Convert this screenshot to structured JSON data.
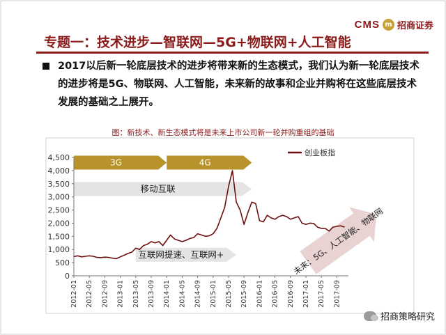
{
  "logo": {
    "cms": "CMS",
    "badge": "m",
    "name": "招商证券"
  },
  "title": "专题一：技术进步—智联网—5G+物联网+人工智能",
  "body_text": "2017以后新一轮底层技术的进步将带来新的生态模式，我们认为新一轮底层技术的进步将是5G、物联网、人工智能，未来新的故事和企业并购将在这些底层技术发展的基础之上展开。",
  "chart_caption": "图：新技术、新生态模式将是未来上市公司新一轮并购重组的基础",
  "watermark": "招商策略研究",
  "colors": {
    "brand": "#8b1a1a",
    "gold": "#b8922b",
    "series": "#6b0f0f",
    "gray_arrow": "#e4e4e4",
    "pink_arrow": "#e8d2d2"
  },
  "chart_data": {
    "type": "line",
    "legend": "创业板指",
    "legend_position": "top-right",
    "ylim": [
      0,
      4500
    ],
    "yticks": [
      "0",
      "500",
      "1,000",
      "1,500",
      "2,000",
      "2,500",
      "3,000",
      "3,500",
      "4,000",
      "4,500"
    ],
    "ytick_values": [
      0,
      500,
      1000,
      1500,
      2000,
      2500,
      3000,
      3500,
      4000,
      4500
    ],
    "xlim": [
      "2012-01",
      "2017-12"
    ],
    "xticks": [
      "2012-01",
      "2012-05",
      "2012-09",
      "2013-01",
      "2013-05",
      "2013-09",
      "2014-01",
      "2014-05",
      "2014-09",
      "2015-01",
      "2015-05",
      "2015-09",
      "2016-01",
      "2016-05",
      "2016-09",
      "2017-01",
      "2017-05",
      "2017-09"
    ],
    "grid": false,
    "series": [
      {
        "name": "创业板指",
        "points": [
          [
            "2012-01",
            730
          ],
          [
            "2012-02",
            760
          ],
          [
            "2012-03",
            720
          ],
          [
            "2012-04",
            740
          ],
          [
            "2012-05",
            760
          ],
          [
            "2012-06",
            740
          ],
          [
            "2012-07",
            700
          ],
          [
            "2012-08",
            690
          ],
          [
            "2012-09",
            710
          ],
          [
            "2012-10",
            700
          ],
          [
            "2012-11",
            670
          ],
          [
            "2012-12",
            650
          ],
          [
            "2013-01",
            720
          ],
          [
            "2013-02",
            780
          ],
          [
            "2013-03",
            850
          ],
          [
            "2013-04",
            900
          ],
          [
            "2013-05",
            1050
          ],
          [
            "2013-06",
            1000
          ],
          [
            "2013-07",
            1150
          ],
          [
            "2013-08",
            1200
          ],
          [
            "2013-09",
            1300
          ],
          [
            "2013-10",
            1250
          ],
          [
            "2013-11",
            1300
          ],
          [
            "2013-12",
            1150
          ],
          [
            "2014-01",
            1350
          ],
          [
            "2014-02",
            1550
          ],
          [
            "2014-03",
            1400
          ],
          [
            "2014-04",
            1350
          ],
          [
            "2014-05",
            1300
          ],
          [
            "2014-06",
            1350
          ],
          [
            "2014-07",
            1420
          ],
          [
            "2014-08",
            1450
          ],
          [
            "2014-09",
            1600
          ],
          [
            "2014-10",
            1550
          ],
          [
            "2014-11",
            1500
          ],
          [
            "2014-12",
            1520
          ],
          [
            "2015-01",
            1600
          ],
          [
            "2015-02",
            1800
          ],
          [
            "2015-03",
            2200
          ],
          [
            "2015-04",
            2600
          ],
          [
            "2015-05",
            3400
          ],
          [
            "2015-06",
            4000
          ],
          [
            "2015-07",
            2800
          ],
          [
            "2015-08",
            2500
          ],
          [
            "2015-09",
            1950
          ],
          [
            "2015-10",
            2400
          ],
          [
            "2015-11",
            2800
          ],
          [
            "2015-12",
            2750
          ],
          [
            "2016-01",
            2100
          ],
          [
            "2016-02",
            2050
          ],
          [
            "2016-03",
            2300
          ],
          [
            "2016-04",
            2200
          ],
          [
            "2016-05",
            2150
          ],
          [
            "2016-06",
            2250
          ],
          [
            "2016-07",
            2300
          ],
          [
            "2016-08",
            2250
          ],
          [
            "2016-09",
            2150
          ],
          [
            "2016-10",
            2200
          ],
          [
            "2016-11",
            2250
          ],
          [
            "2016-12",
            2000
          ],
          [
            "2017-01",
            1950
          ],
          [
            "2017-02",
            2000
          ],
          [
            "2017-03",
            1990
          ],
          [
            "2017-04",
            1850
          ],
          [
            "2017-05",
            1800
          ],
          [
            "2017-06",
            1800
          ],
          [
            "2017-07",
            1700
          ],
          [
            "2017-08",
            1850
          ],
          [
            "2017-09",
            1880
          ],
          [
            "2017-10",
            1900
          ],
          [
            "2017-11",
            1850
          ]
        ]
      }
    ],
    "annotations": [
      {
        "label": "3G",
        "kind": "gold-arrow",
        "start": "2012-01",
        "end": "2014-01",
        "y": 4300
      },
      {
        "label": "4G",
        "kind": "gold-arrow",
        "start": "2014-01",
        "end": "2015-11",
        "y": 4300
      },
      {
        "label": "移动互联",
        "kind": "gray-arrow",
        "start": "2012-01",
        "end": "2015-11",
        "y": 3300
      },
      {
        "label": "互联网提速、互联网+",
        "kind": "gray-arrow",
        "start": "2013-05",
        "end": "2015-07",
        "y": 800
      },
      {
        "label": "未来：5G、人工智能、物联网",
        "kind": "pink-arrow",
        "start": "2017-03",
        "end": "2017-12",
        "y": 1500
      }
    ]
  }
}
